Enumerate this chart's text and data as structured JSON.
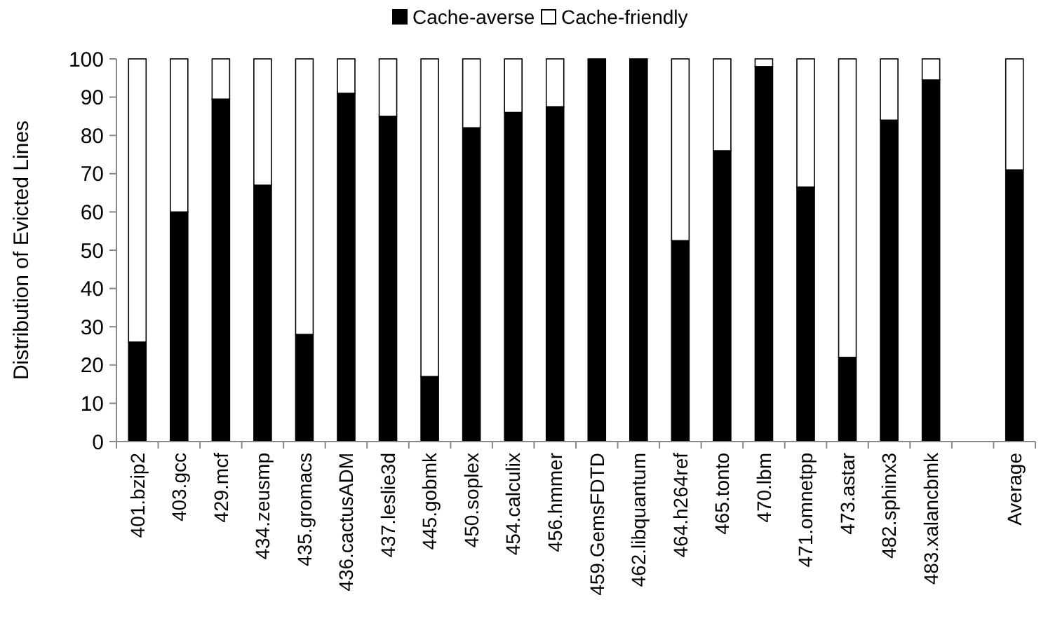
{
  "chart_data": {
    "type": "bar",
    "stacked": true,
    "ylabel": "Distribution of Evicted Lines",
    "categories": [
      "401.bzip2",
      "403.gcc",
      "429.mcf",
      "434.zeusmp",
      "435.gromacs",
      "436.cactusADM",
      "437.leslie3d",
      "445.gobmk",
      "450.soplex",
      "454.calculix",
      "456.hmmer",
      "459.GemsFDTD",
      "462.libquantum",
      "464.h264ref",
      "465.tonto",
      "470.lbm",
      "471.omnetpp",
      "473.astar",
      "482.sphinx3",
      "483.xalancbmk",
      null,
      "Average"
    ],
    "series": [
      {
        "name": "Cache-averse",
        "color": "#000000",
        "values": [
          26,
          60,
          89.5,
          67,
          28,
          91,
          85,
          17,
          82,
          86,
          87.5,
          100,
          100,
          52.5,
          76,
          98,
          66.5,
          22,
          84,
          94.5,
          null,
          71
        ]
      },
      {
        "name": "Cache-friendly",
        "color": "#ffffff",
        "values": [
          74,
          40,
          10.5,
          33,
          72,
          9,
          15,
          83,
          18,
          14,
          12.5,
          0,
          0,
          47.5,
          24,
          2,
          33.5,
          78,
          16,
          5.5,
          null,
          29
        ]
      }
    ],
    "ylim": [
      0,
      100
    ],
    "yticks": [
      0,
      10,
      20,
      30,
      40,
      50,
      60,
      70,
      80,
      90,
      100
    ],
    "grid": false,
    "legend": "top"
  }
}
